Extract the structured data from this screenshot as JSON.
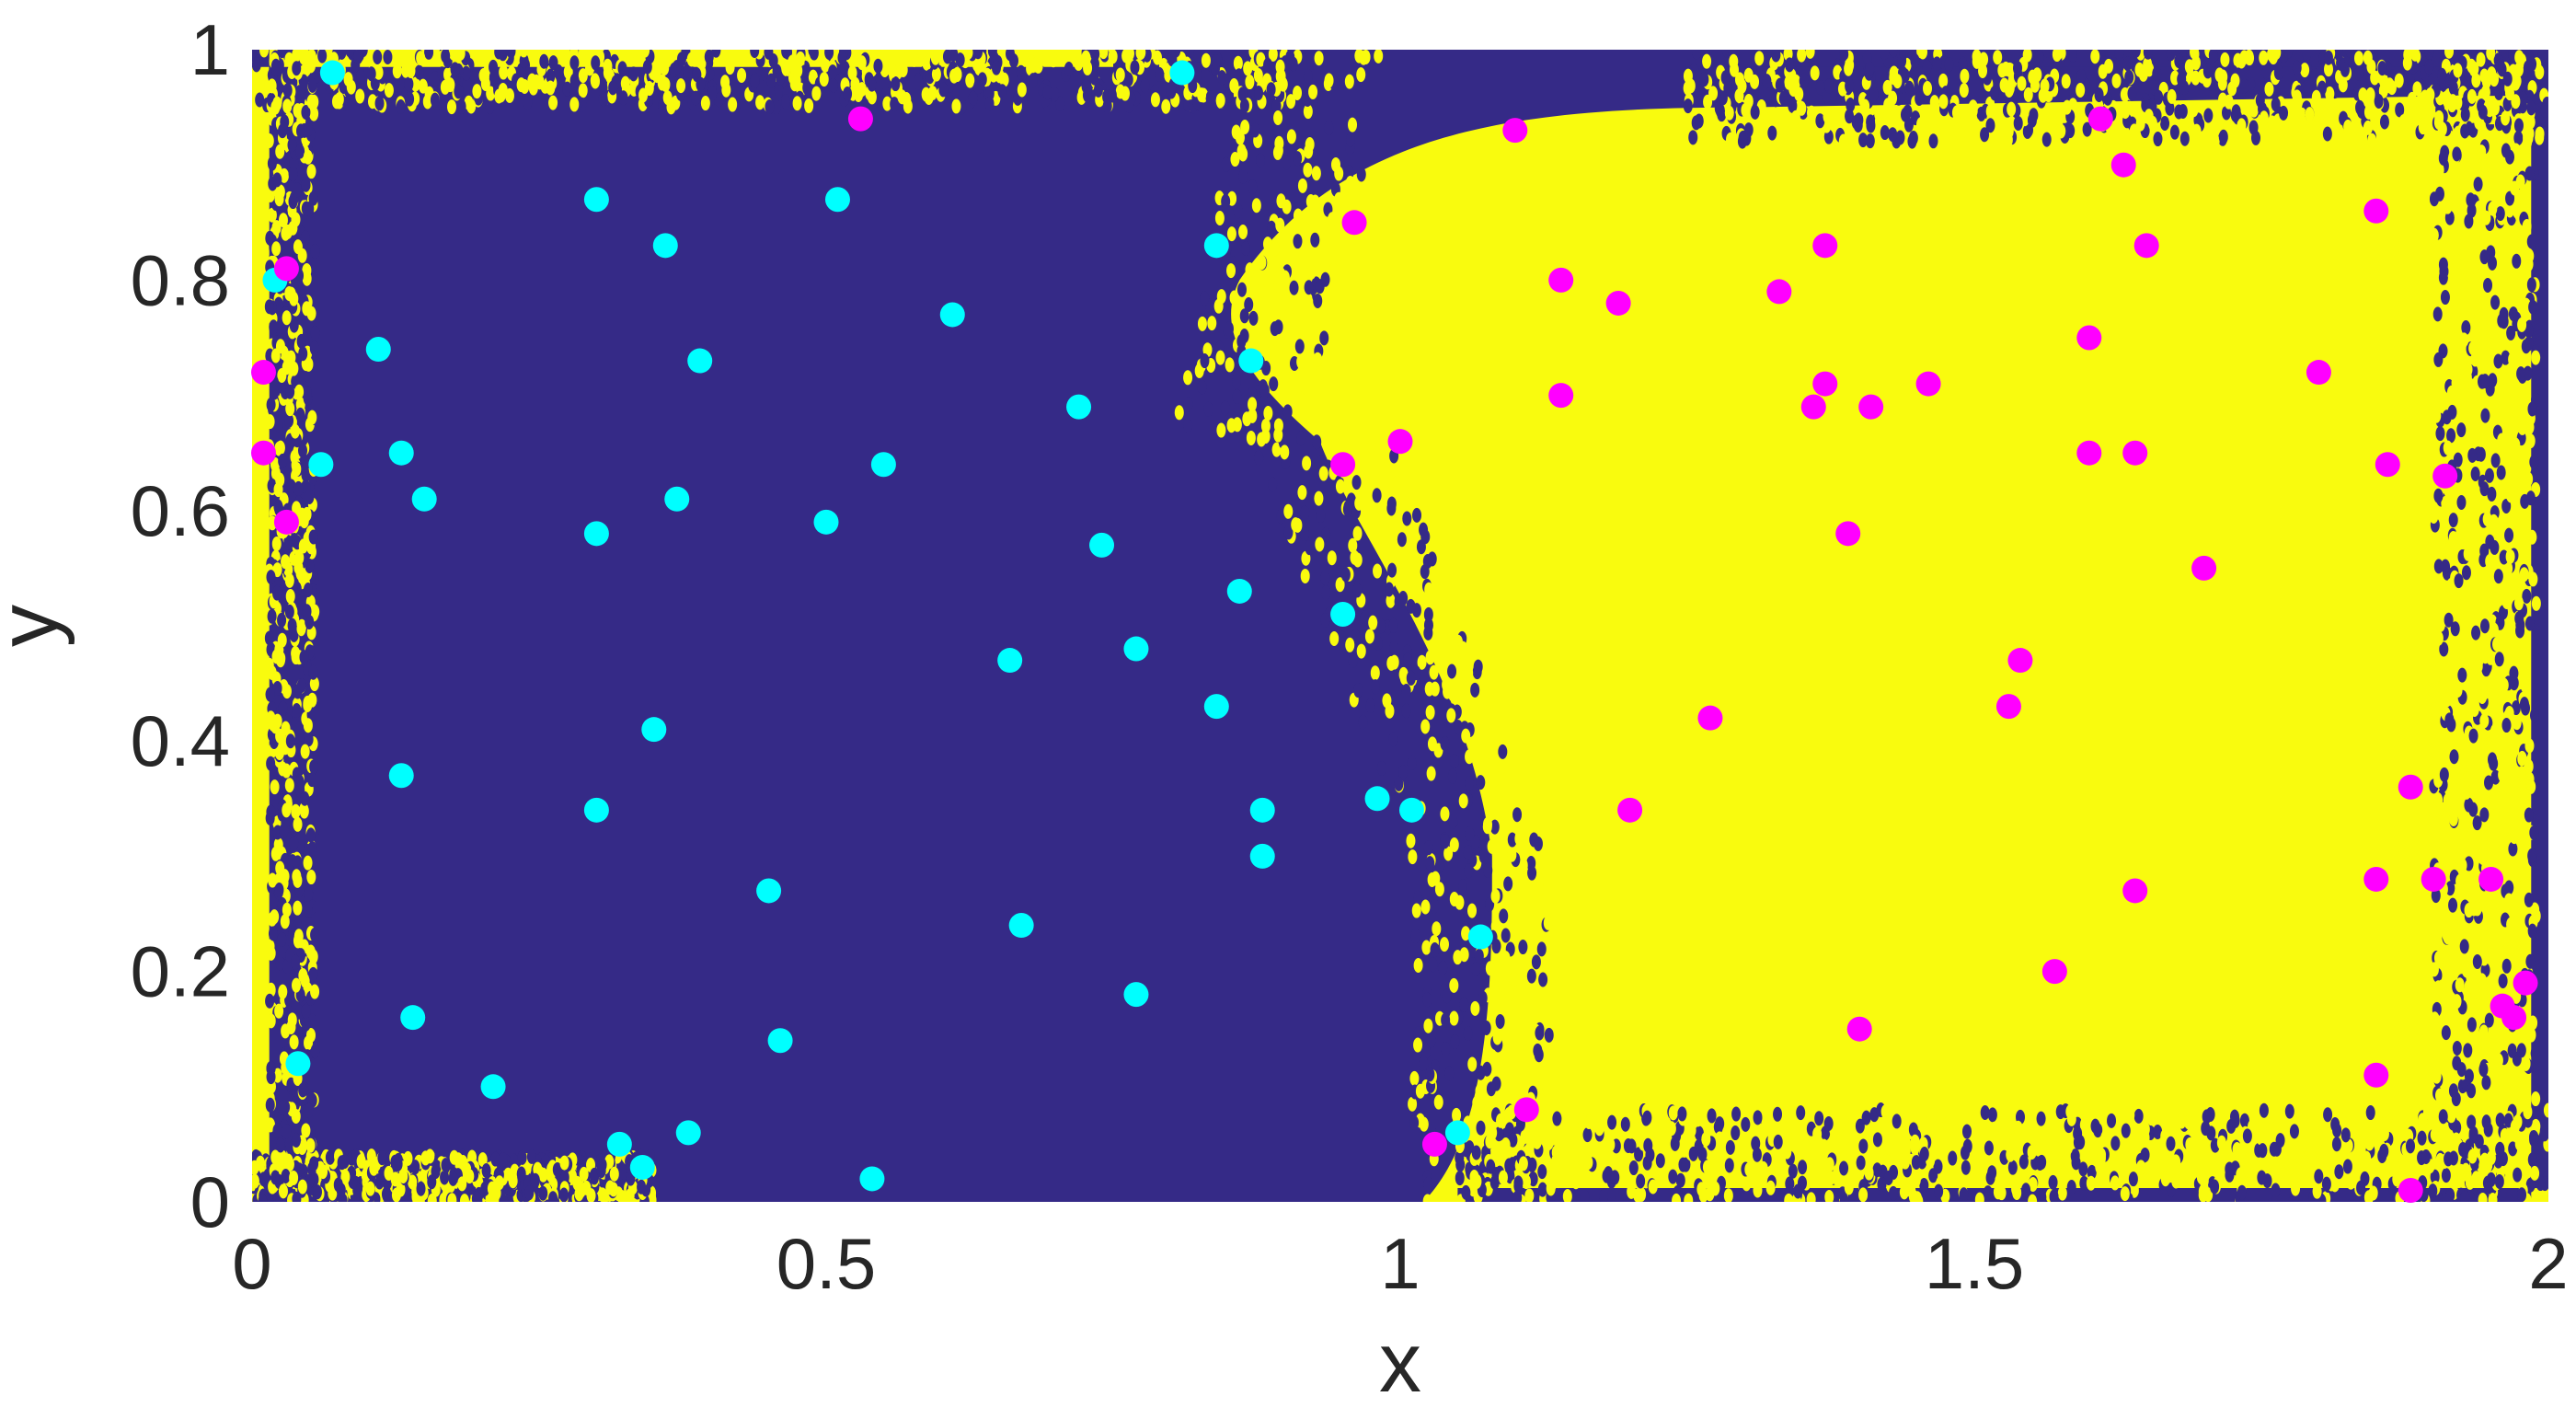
{
  "chart_data": {
    "type": "scatter",
    "title": "",
    "xlabel": "x",
    "ylabel": "y",
    "xlim": [
      0,
      2
    ],
    "ylim": [
      0,
      1
    ],
    "x_ticks": [
      "0",
      "0.5",
      "1",
      "1.5",
      "2"
    ],
    "x_tick_values": [
      0,
      0.5,
      1,
      1.5,
      2
    ],
    "y_ticks": [
      "0",
      "0.2",
      "0.4",
      "0.6",
      "0.8",
      "1"
    ],
    "y_tick_values": [
      0,
      0.2,
      0.4,
      0.6,
      0.8,
      1
    ],
    "grid": false,
    "legend": "none",
    "colors": {
      "region_class_0": "#352a87",
      "region_class_1": "#f9fb0e",
      "class_0_points": "#00ffff",
      "class_1_points": "#ff00ff",
      "axis": "#262626"
    },
    "background_regions": [
      {
        "class": 0,
        "description_only_color": "region_class_0"
      },
      {
        "class": 1,
        "description_only_color": "region_class_1"
      }
    ],
    "series": [
      {
        "color_key": "class_0_points",
        "points": [
          [
            0.07,
            0.98
          ],
          [
            0.81,
            0.98
          ],
          [
            0.3,
            0.87
          ],
          [
            0.51,
            0.87
          ],
          [
            0.36,
            0.83
          ],
          [
            0.84,
            0.83
          ],
          [
            0.02,
            0.8
          ],
          [
            0.11,
            0.74
          ],
          [
            0.39,
            0.73
          ],
          [
            0.61,
            0.77
          ],
          [
            0.87,
            0.73
          ],
          [
            0.72,
            0.69
          ],
          [
            0.06,
            0.64
          ],
          [
            0.13,
            0.65
          ],
          [
            0.15,
            0.61
          ],
          [
            0.37,
            0.61
          ],
          [
            0.3,
            0.58
          ],
          [
            0.5,
            0.59
          ],
          [
            0.55,
            0.64
          ],
          [
            0.74,
            0.57
          ],
          [
            0.86,
            0.53
          ],
          [
            0.95,
            0.51
          ],
          [
            0.66,
            0.47
          ],
          [
            0.77,
            0.48
          ],
          [
            0.84,
            0.43
          ],
          [
            0.35,
            0.41
          ],
          [
            0.13,
            0.37
          ],
          [
            0.3,
            0.34
          ],
          [
            0.88,
            0.34
          ],
          [
            0.98,
            0.35
          ],
          [
            1.01,
            0.34
          ],
          [
            0.88,
            0.3
          ],
          [
            0.45,
            0.27
          ],
          [
            0.67,
            0.24
          ],
          [
            1.07,
            0.23
          ],
          [
            0.77,
            0.18
          ],
          [
            0.14,
            0.16
          ],
          [
            0.46,
            0.14
          ],
          [
            0.04,
            0.12
          ],
          [
            0.21,
            0.1
          ],
          [
            0.32,
            0.05
          ],
          [
            0.38,
            0.06
          ],
          [
            0.34,
            0.03
          ],
          [
            0.54,
            0.02
          ],
          [
            1.05,
            0.06
          ]
        ]
      },
      {
        "color_key": "class_1_points",
        "points": [
          [
            0.53,
            0.94
          ],
          [
            1.1,
            0.93
          ],
          [
            1.61,
            0.94
          ],
          [
            1.63,
            0.9
          ],
          [
            0.96,
            0.85
          ],
          [
            1.85,
            0.86
          ],
          [
            0.03,
            0.81
          ],
          [
            1.37,
            0.83
          ],
          [
            1.65,
            0.83
          ],
          [
            1.14,
            0.8
          ],
          [
            1.19,
            0.78
          ],
          [
            1.33,
            0.79
          ],
          [
            0.01,
            0.72
          ],
          [
            1.14,
            0.7
          ],
          [
            1.36,
            0.69
          ],
          [
            1.37,
            0.71
          ],
          [
            1.41,
            0.69
          ],
          [
            1.46,
            0.71
          ],
          [
            1.6,
            0.75
          ],
          [
            1.8,
            0.72
          ],
          [
            0.01,
            0.65
          ],
          [
            1.0,
            0.66
          ],
          [
            0.95,
            0.64
          ],
          [
            1.6,
            0.65
          ],
          [
            1.64,
            0.65
          ],
          [
            1.86,
            0.64
          ],
          [
            1.91,
            0.63
          ],
          [
            0.03,
            0.59
          ],
          [
            1.39,
            0.58
          ],
          [
            1.7,
            0.55
          ],
          [
            1.54,
            0.47
          ],
          [
            1.53,
            0.43
          ],
          [
            1.27,
            0.42
          ],
          [
            1.88,
            0.36
          ],
          [
            1.2,
            0.34
          ],
          [
            1.85,
            0.28
          ],
          [
            1.9,
            0.28
          ],
          [
            1.95,
            0.28
          ],
          [
            1.64,
            0.27
          ],
          [
            1.57,
            0.2
          ],
          [
            1.98,
            0.19
          ],
          [
            1.96,
            0.17
          ],
          [
            1.97,
            0.16
          ],
          [
            1.4,
            0.15
          ],
          [
            1.85,
            0.11
          ],
          [
            1.11,
            0.08
          ],
          [
            1.03,
            0.05
          ],
          [
            1.88,
            0.01
          ]
        ]
      }
    ]
  }
}
